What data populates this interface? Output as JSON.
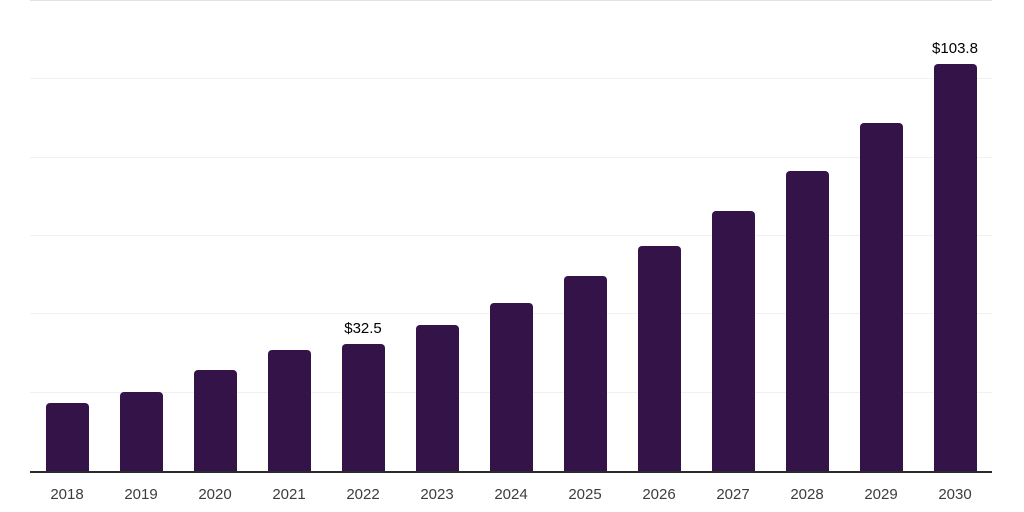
{
  "chart_data": {
    "type": "bar",
    "title": "",
    "xlabel": "",
    "ylabel": "",
    "categories": [
      "2018",
      "2019",
      "2020",
      "2021",
      "2022",
      "2023",
      "2024",
      "2025",
      "2026",
      "2027",
      "2028",
      "2029",
      "2030"
    ],
    "values": [
      17.4,
      20.1,
      25.8,
      31.0,
      32.5,
      37.3,
      43.0,
      49.8,
      57.4,
      66.3,
      76.7,
      88.9,
      103.8
    ],
    "data_labels": {
      "2022": "$32.5",
      "2030": "$103.8"
    },
    "ylim": [
      0,
      120
    ],
    "gridline_step": 20,
    "grid": true,
    "legend": false,
    "bar_color": "#341348",
    "axis_line_color": "#2b2b2b",
    "top_border_color": "#e2e2e2",
    "gridline_color": "#f1f1f1",
    "data_label_color": "#000000",
    "tick_label_color": "#3d3d3d",
    "background_color": "#ffffff"
  }
}
